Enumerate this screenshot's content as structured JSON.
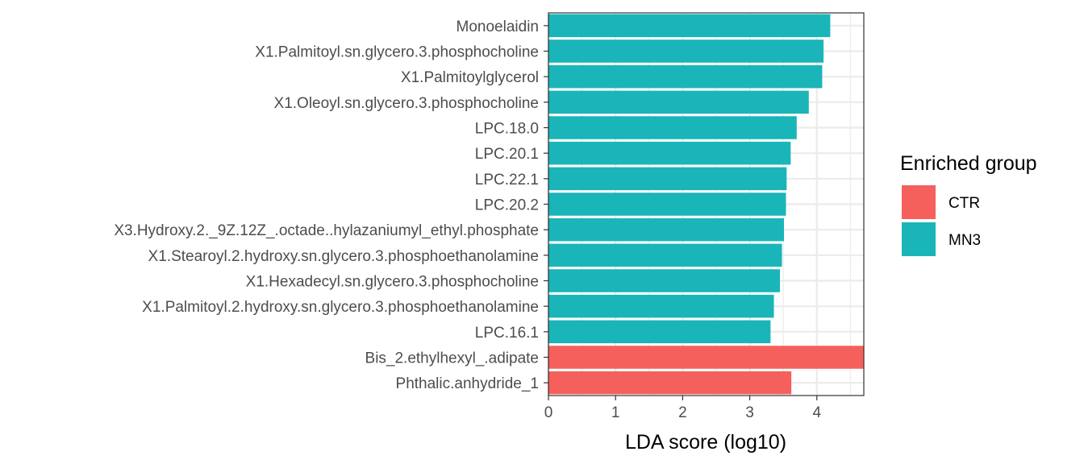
{
  "chart_data": {
    "type": "bar",
    "orientation": "horizontal",
    "categories": [
      "Monoelaidin",
      "X1.Palmitoyl.sn.glycero.3.phosphocholine",
      "X1.Palmitoylglycerol",
      "X1.Oleoyl.sn.glycero.3.phosphocholine",
      "LPC.18.0",
      "LPC.20.1",
      "LPC.22.1",
      "LPC.20.2",
      "X3.Hydroxy.2._9Z.12Z_.octade..hylazaniumyl_ethyl.phosphate",
      "X1.Stearoyl.2.hydroxy.sn.glycero.3.phosphoethanolamine",
      "X1.Hexadecyl.sn.glycero.3.phosphocholine",
      "X1.Palmitoyl.2.hydroxy.sn.glycero.3.phosphoethanolamine",
      "LPC.16.1",
      "Bis_2.ethylhexyl_.adipate",
      "Phthalic.anhydride_1"
    ],
    "values": [
      4.2,
      4.1,
      4.08,
      3.88,
      3.7,
      3.61,
      3.55,
      3.54,
      3.51,
      3.48,
      3.45,
      3.36,
      3.31,
      4.75,
      3.62
    ],
    "groups": [
      "MN3",
      "MN3",
      "MN3",
      "MN3",
      "MN3",
      "MN3",
      "MN3",
      "MN3",
      "MN3",
      "MN3",
      "MN3",
      "MN3",
      "MN3",
      "CTR",
      "CTR"
    ],
    "xlabel": "LDA score (log10)",
    "ylabel": "",
    "xlim": [
      0,
      4.7
    ],
    "x_ticks": [
      0,
      1,
      2,
      3,
      4
    ],
    "grid": true,
    "legend": {
      "title": "Enriched group",
      "position": "right",
      "entries": [
        {
          "name": "CTR",
          "color": "#F8766D"
        },
        {
          "name": "MN3",
          "color": "#00BFC4"
        }
      ]
    },
    "colors": {
      "CTR": "#F5605C",
      "MN3": "#1AB5B8"
    }
  }
}
